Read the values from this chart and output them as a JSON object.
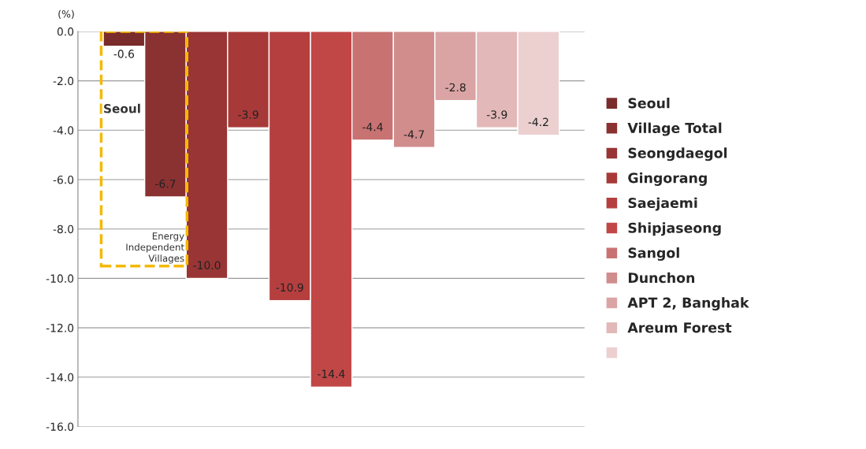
{
  "chart_data": {
    "type": "bar",
    "ylabel": "(%)",
    "categories": [
      null
    ],
    "series": [
      {
        "name": "Seoul",
        "color": "#7a2b2b",
        "values": [
          -0.6
        ],
        "value_labels": [
          "-0.6"
        ]
      },
      {
        "name": "Village Total",
        "color": "#8a3131",
        "values": [
          -6.7
        ],
        "value_labels": [
          "-6.7"
        ]
      },
      {
        "name": "Seongdaegol",
        "color": "#993535",
        "values": [
          -10.0
        ],
        "value_labels": [
          "-10.0"
        ]
      },
      {
        "name": "Gingorang",
        "color": "#a83939",
        "values": [
          -3.9
        ],
        "value_labels": [
          "-3.9"
        ]
      },
      {
        "name": "Saejaemi",
        "color": "#b53f3f",
        "values": [
          -10.9
        ],
        "value_labels": [
          "-10.9"
        ]
      },
      {
        "name": "Shipjaseong",
        "color": "#c14747",
        "values": [
          -14.4
        ],
        "value_labels": [
          "-14.4"
        ]
      },
      {
        "name": "Sangol",
        "color": "#c97272",
        "values": [
          -4.4
        ],
        "value_labels": [
          "-4.4"
        ]
      },
      {
        "name": "Dunchon",
        "color": "#d18c8c",
        "values": [
          -4.7
        ],
        "value_labels": [
          "-4.7"
        ]
      },
      {
        "name": "APT 2, Banghak",
        "color": "#dba4a4",
        "values": [
          -2.8
        ],
        "value_labels": [
          "-2.8"
        ]
      },
      {
        "name": "Areum Forest",
        "color": "#e3b8b8",
        "values": [
          -3.9
        ],
        "value_labels": [
          "-3.9"
        ]
      },
      {
        "color": "#ecd0d0",
        "values": [
          -4.2
        ],
        "value_labels": [
          "-4.2"
        ]
      }
    ],
    "ylim": [
      -16,
      0
    ],
    "yticks": [
      {
        "value": 0,
        "label": "0.0"
      },
      {
        "value": -2,
        "label": "-2.0"
      },
      {
        "value": -4,
        "label": "-4.0"
      },
      {
        "value": -6,
        "label": "-6.0"
      },
      {
        "value": -8,
        "label": "-8.0"
      },
      {
        "value": -10,
        "label": "-10.0"
      },
      {
        "value": -12,
        "label": "-12.0"
      },
      {
        "value": -14,
        "label": "-14.0"
      },
      {
        "value": -16,
        "label": "-16.0"
      }
    ],
    "grid": "y",
    "legend": "right",
    "annotations": [
      "Seoul",
      "Energy Independent Villages"
    ]
  }
}
